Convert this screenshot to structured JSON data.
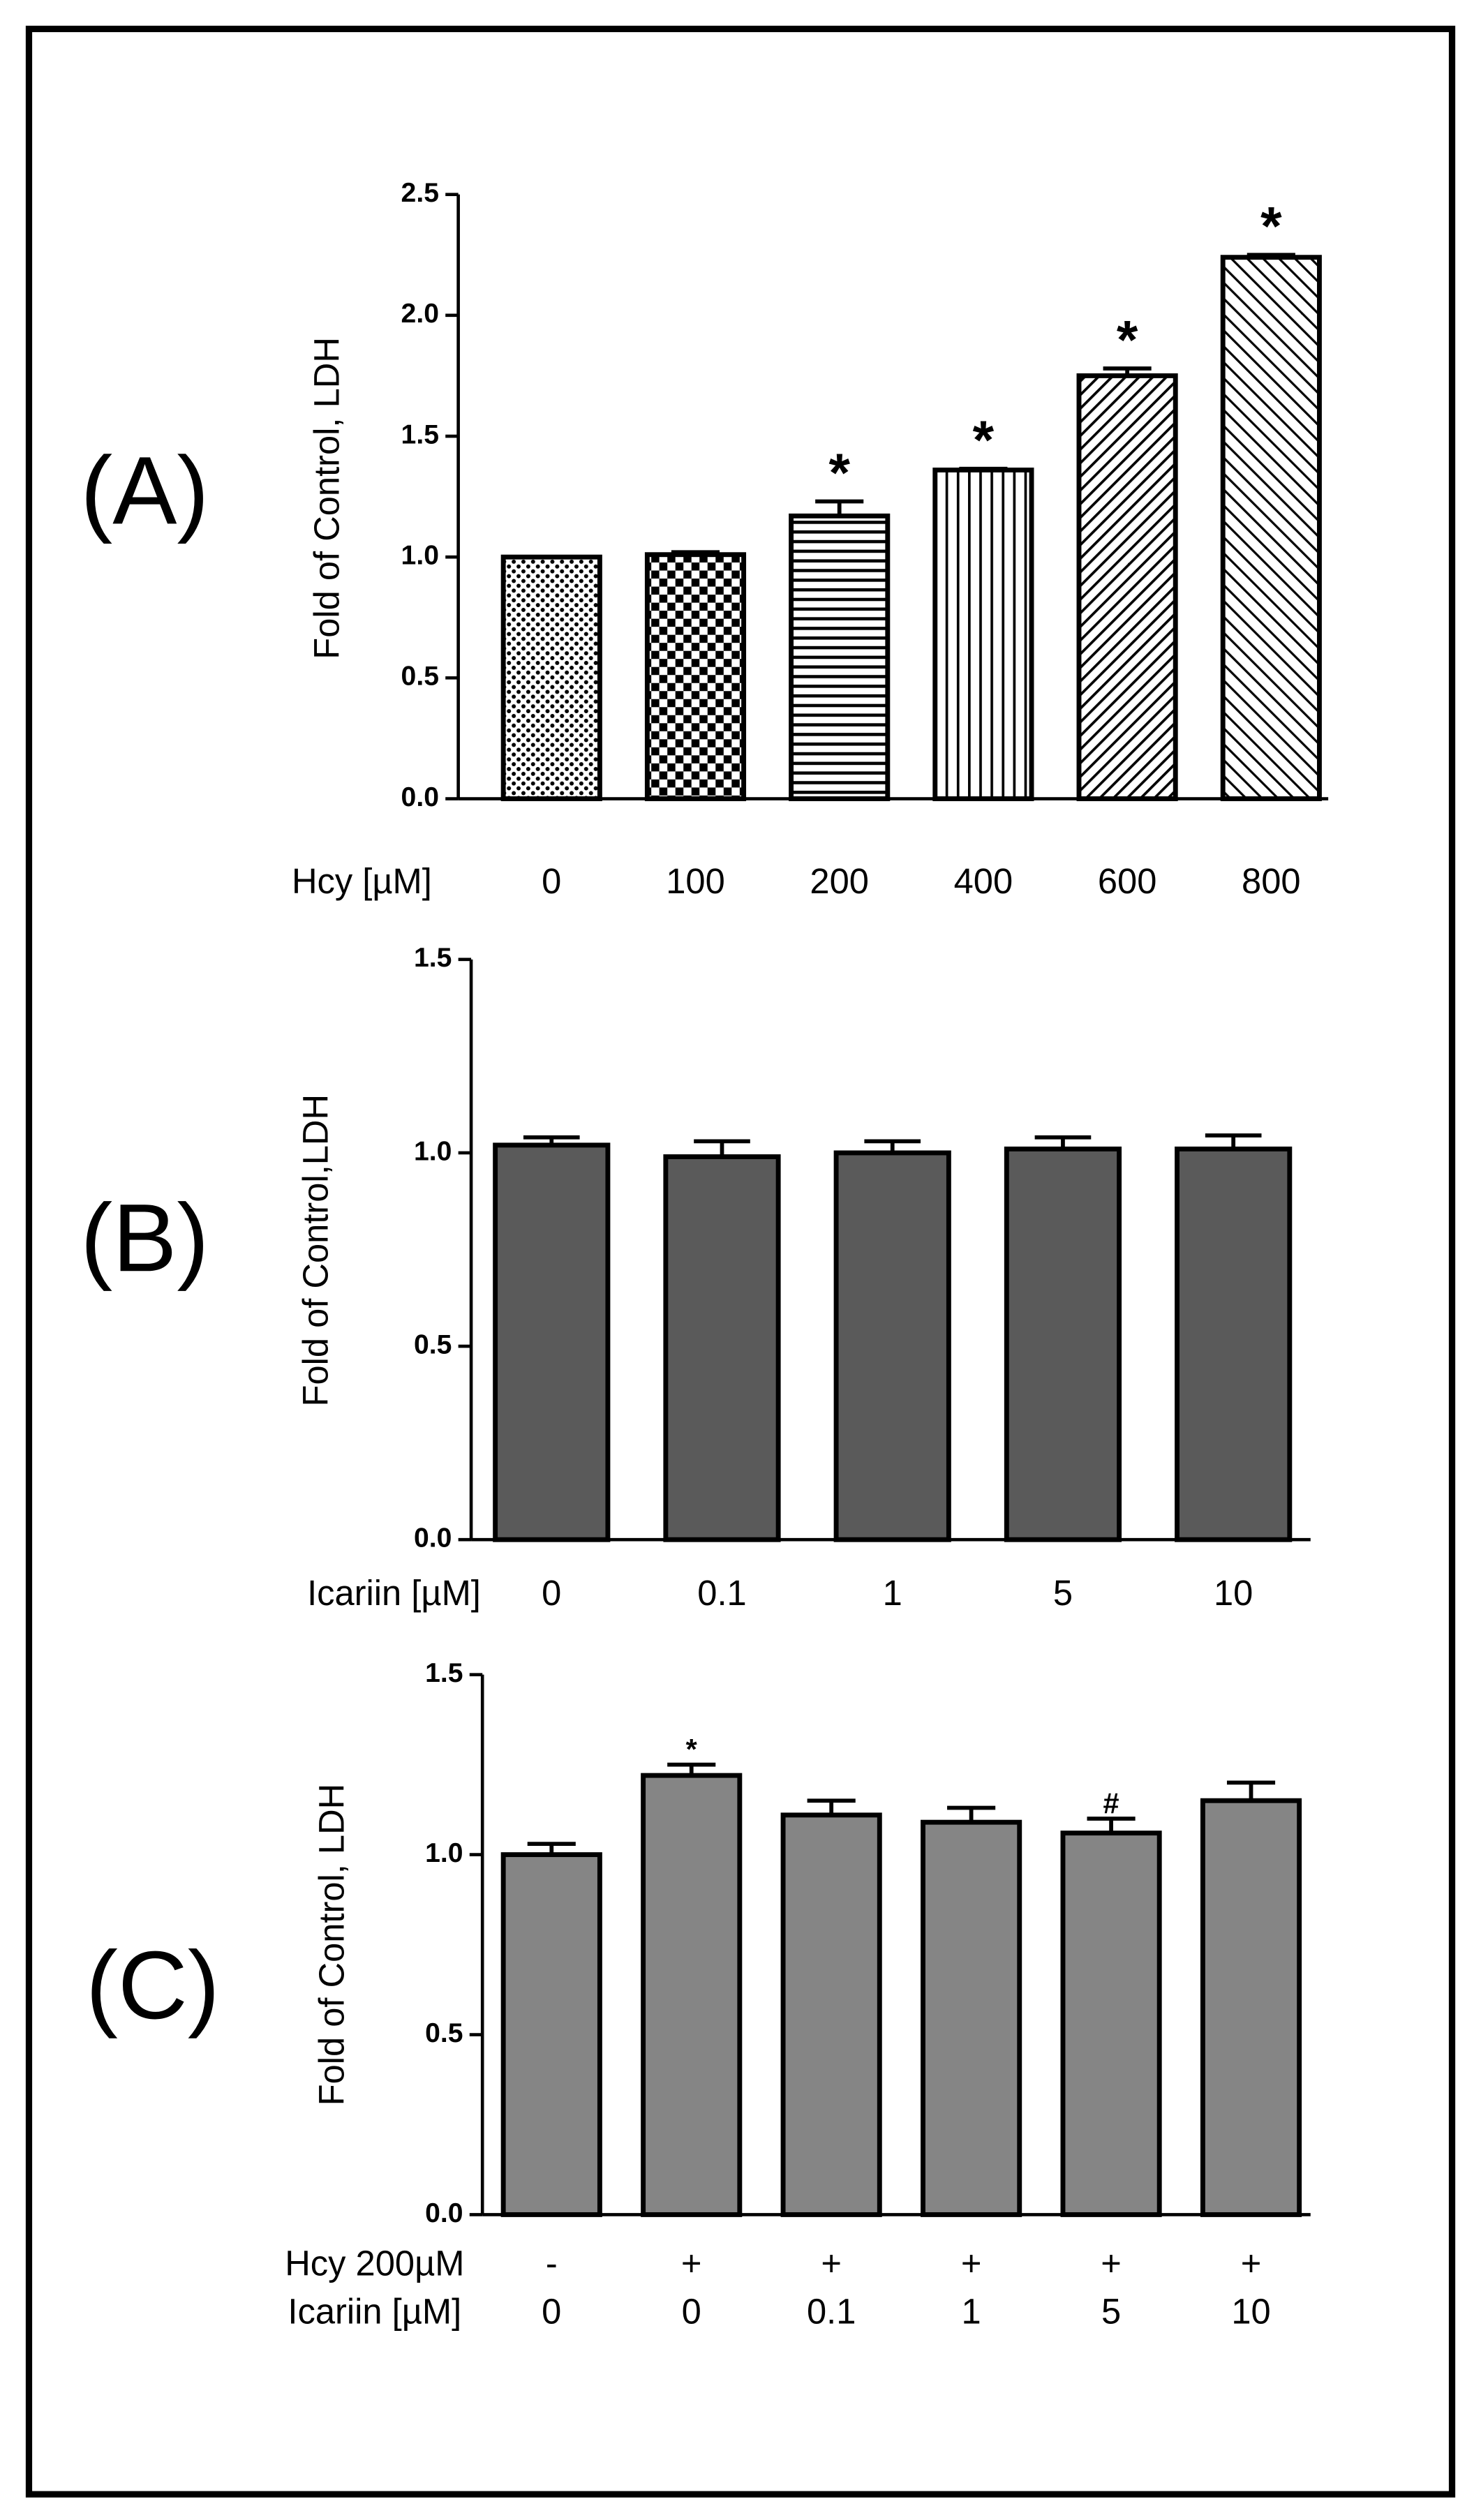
{
  "chart_data": [
    {
      "type": "bar",
      "panel_label": "(A)",
      "ylabel": "Fold of Control, LDH",
      "xlabel": "Hcy [µM]",
      "categories": [
        "0",
        "100",
        "200",
        "400",
        "600",
        "800"
      ],
      "values": [
        1.0,
        1.01,
        1.17,
        1.36,
        1.75,
        2.24
      ],
      "errors": [
        0.0,
        0.01,
        0.06,
        0.005,
        0.03,
        0.01
      ],
      "annotations": [
        null,
        null,
        "*",
        "*",
        "*",
        "*"
      ],
      "color": "#000000",
      "ylim": [
        0,
        2.5
      ],
      "yticks": [
        {
          "value": 0,
          "label": "0.0"
        },
        0.5,
        {
          "value": 1,
          "label": "1.0"
        },
        1.5,
        {
          "value": 2,
          "label": "2.0"
        },
        2.5
      ]
    },
    {
      "type": "bar",
      "panel_label": "(B)",
      "ylabel": "Fold of Control,LDH",
      "xlabel": "Icariin [µM]",
      "categories": [
        "0",
        "0.1",
        "1",
        "5",
        "10"
      ],
      "values": [
        1.02,
        0.99,
        1.0,
        1.01,
        1.01
      ],
      "errors": [
        0.02,
        0.04,
        0.03,
        0.03,
        0.035
      ],
      "color": "#5a5a5a",
      "ylim": [
        0,
        1.5
      ],
      "yticks": [
        {
          "value": 0,
          "label": "0.0"
        },
        0.5,
        {
          "value": 1,
          "label": "1.0"
        },
        1.5
      ]
    },
    {
      "type": "bar",
      "panel_label": "(C)",
      "ylabel": "Fold of Control, LDH",
      "category_rows": [
        {
          "name": "Hcy 200µM",
          "labels": [
            "-",
            "+",
            "+",
            "+",
            "+",
            "+"
          ]
        },
        {
          "name": "Icariin [µM]",
          "labels": [
            "0",
            "0",
            "0.1",
            "1",
            "5",
            "10"
          ]
        }
      ],
      "values": [
        1.0,
        1.22,
        1.11,
        1.09,
        1.06,
        1.15
      ],
      "errors": [
        0.03,
        0.03,
        0.04,
        0.04,
        0.04,
        0.05
      ],
      "annotations": [
        null,
        "*",
        null,
        null,
        "#",
        null
      ],
      "color": "#858585",
      "ylim": [
        0,
        1.5
      ],
      "yticks": [
        {
          "value": 0,
          "label": "0.0"
        },
        0.5,
        {
          "value": 1,
          "label": "1.0"
        },
        1.5
      ]
    }
  ]
}
